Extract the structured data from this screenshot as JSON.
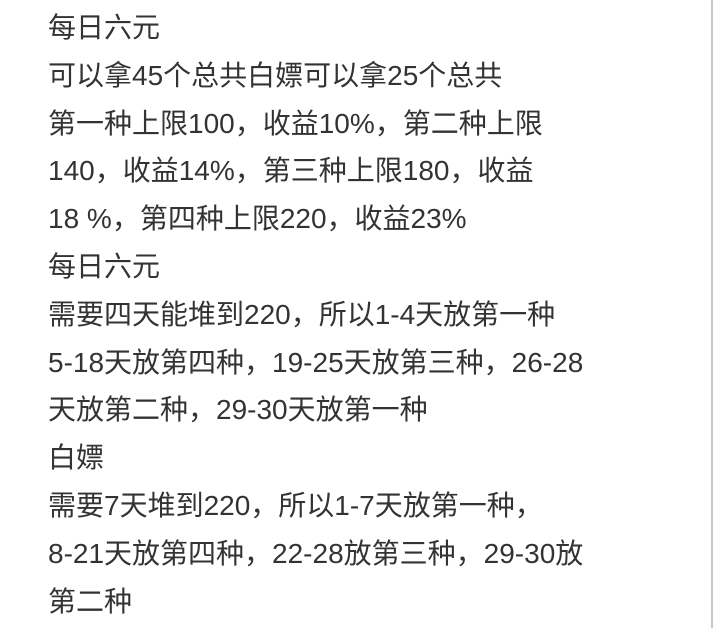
{
  "note": {
    "lines": [
      "每日六元",
      "可以拿45个总共白嫖可以拿25个总共",
      "第一种上限100，收益10%，第二种上限",
      "140，收益14%，第三种上限180，收益",
      "18 %，第四种上限220，收益23%",
      "每日六元",
      "需要四天能堆到220，所以1-4天放第一种",
      "5-18天放第四种，19-25天放第三种，26-28",
      "天放第二种，29-30天放第一种",
      "白嫖",
      "需要7天堆到220，所以1-7天放第一种，",
      "8-21天放第四种，22-28放第三种，29-30放",
      "第二种"
    ]
  },
  "colors": {
    "text": "#333333",
    "background": "#ffffff"
  }
}
